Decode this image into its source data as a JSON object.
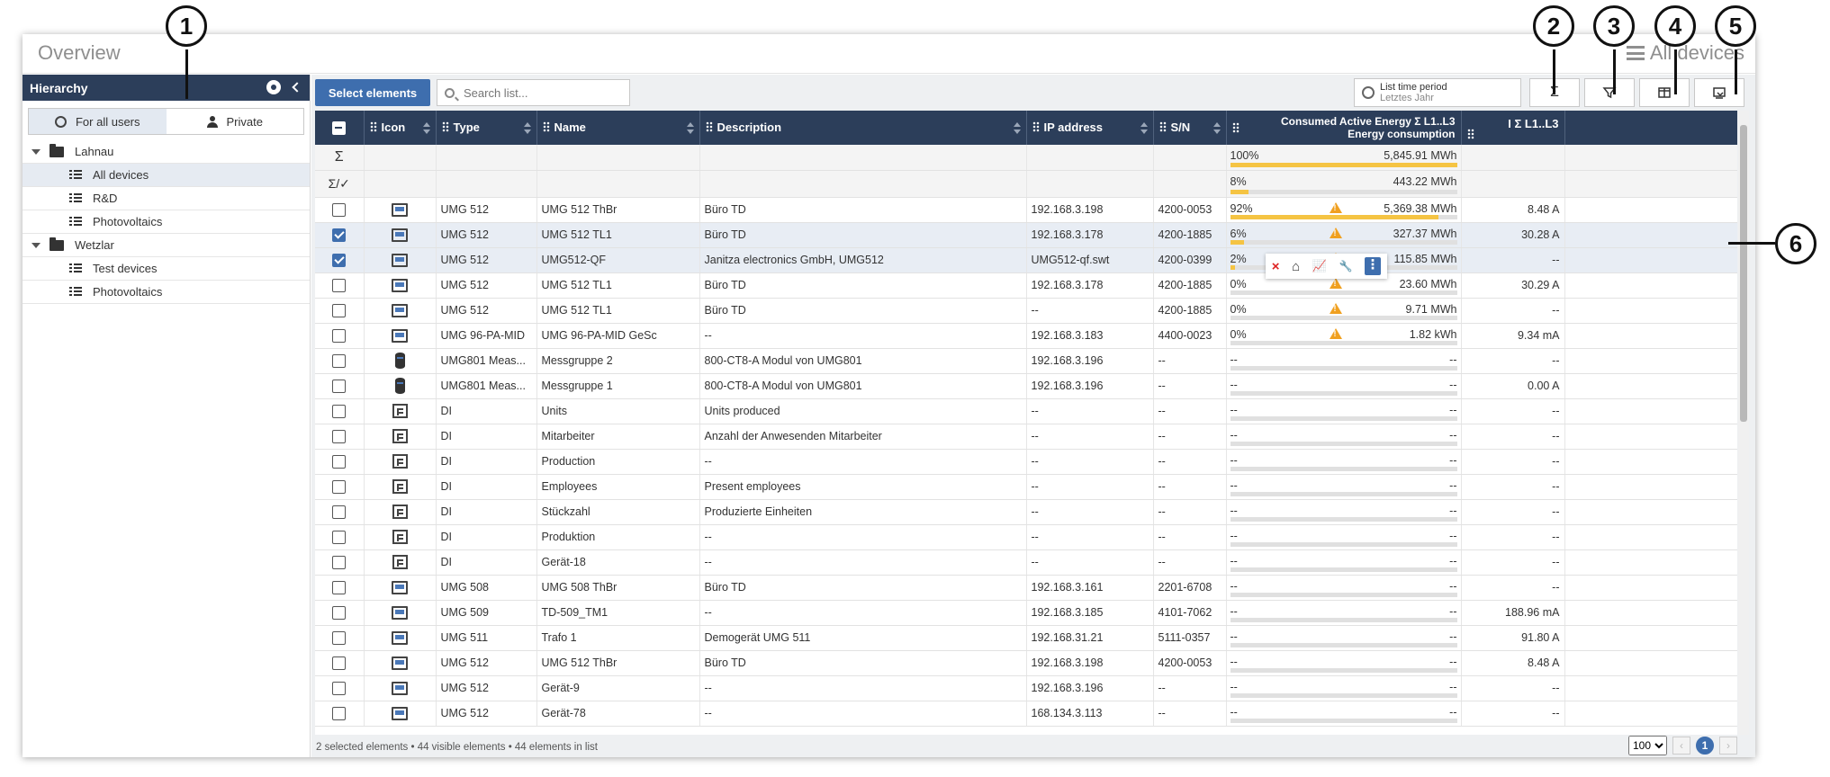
{
  "window": {
    "title": "Overview",
    "breadcrumb": "All devices"
  },
  "sidebar": {
    "header": "Hierarchy",
    "segments": [
      "For all users",
      "Private"
    ],
    "tree": [
      {
        "label": "Lahnau",
        "type": "folder"
      },
      {
        "label": "All devices",
        "type": "list",
        "selected": true
      },
      {
        "label": "R&D",
        "type": "list"
      },
      {
        "label": "Photovoltaics",
        "type": "list"
      },
      {
        "label": "Wetzlar",
        "type": "folder"
      },
      {
        "label": "Test devices",
        "type": "list"
      },
      {
        "label": "Photovoltaics",
        "type": "list"
      }
    ]
  },
  "toolbar": {
    "select_label": "Select elements",
    "search_placeholder": "Search list...",
    "period_title": "List time period",
    "period_value": "Letztes Jahr",
    "sum_icon": "Σ"
  },
  "table": {
    "headers": {
      "icon": "Icon",
      "type": "Type",
      "name": "Name",
      "description": "Description",
      "ip": "IP address",
      "sn": "S/N",
      "energy_line1": "Consumed Active Energy Σ L1..L3",
      "energy_line2": "Energy consumption",
      "current": "I Σ L1..L3"
    },
    "sum_row": {
      "symbol": "Σ",
      "pct": "100%",
      "value": "5,845.91 MWh",
      "fill": 1.0
    },
    "sum_sel_row": {
      "symbol": "Σ/✓",
      "pct": "8%",
      "value": "443.22 MWh",
      "fill": 0.08
    },
    "rows": [
      {
        "checked": false,
        "icon": "device",
        "type": "UMG 512",
        "name": "UMG 512 ThBr",
        "desc": "Büro TD",
        "ip": "192.168.3.198",
        "sn": "4200-0053",
        "pct": "92%",
        "energy": "5,369.38 MWh",
        "fill": 0.92,
        "warn": true,
        "current": "8.48 A"
      },
      {
        "checked": true,
        "icon": "device",
        "type": "UMG 512",
        "name": "UMG 512 TL1",
        "desc": "Büro TD",
        "ip": "192.168.3.178",
        "sn": "4200-1885",
        "pct": "6%",
        "energy": "327.37 MWh",
        "fill": 0.06,
        "warn": true,
        "current": "30.28 A"
      },
      {
        "checked": true,
        "icon": "device",
        "type": "UMG 512",
        "name": "UMG512-QF",
        "desc": "Janitza electronics GmbH, UMG512",
        "ip": "UMG512-qf.swt",
        "sn": "4200-0399",
        "pct": "2%",
        "energy": "115.85 MWh",
        "fill": 0.02,
        "warn": true,
        "current": "--"
      },
      {
        "checked": false,
        "icon": "device",
        "type": "UMG 512",
        "name": "UMG 512 TL1",
        "desc": "Büro TD",
        "ip": "192.168.3.178",
        "sn": "4200-1885",
        "pct": "0%",
        "energy": "23.60 MWh",
        "fill": 0,
        "warn": true,
        "current": "30.29 A"
      },
      {
        "checked": false,
        "icon": "device",
        "type": "UMG 512",
        "name": "UMG 512 TL1",
        "desc": "Büro TD",
        "ip": "--",
        "sn": "4200-1885",
        "pct": "0%",
        "energy": "9.71 MWh",
        "fill": 0,
        "warn": true,
        "current": "--"
      },
      {
        "checked": false,
        "icon": "device",
        "type": "UMG 96-PA-MID",
        "name": "UMG 96-PA-MID GeSc",
        "desc": "--",
        "ip": "192.168.3.183",
        "sn": "4400-0023",
        "pct": "0%",
        "energy": "1.82 kWh",
        "fill": 0,
        "warn": true,
        "current": "9.34 mA"
      },
      {
        "checked": false,
        "icon": "cylinder",
        "type": "UMG801 Meas...",
        "name": "Messgruppe 2",
        "desc": "800-CT8-A Modul von UMG801",
        "ip": "192.168.3.196",
        "sn": "--",
        "pct": "--",
        "energy": "--",
        "fill": 0,
        "warn": false,
        "current": "--"
      },
      {
        "checked": false,
        "icon": "cylinder",
        "type": "UMG801 Meas...",
        "name": "Messgruppe 1",
        "desc": "800-CT8-A Modul von UMG801",
        "ip": "192.168.3.196",
        "sn": "--",
        "pct": "--",
        "energy": "--",
        "fill": 0,
        "warn": false,
        "current": "0.00 A"
      },
      {
        "checked": false,
        "icon": "di",
        "type": "DI",
        "name": "Units",
        "desc": "Units produced",
        "ip": "--",
        "sn": "--",
        "pct": "--",
        "energy": "--",
        "fill": 0,
        "warn": false,
        "current": "--"
      },
      {
        "checked": false,
        "icon": "di",
        "type": "DI",
        "name": "Mitarbeiter",
        "desc": "Anzahl der Anwesenden Mitarbeiter",
        "ip": "--",
        "sn": "--",
        "pct": "--",
        "energy": "--",
        "fill": 0,
        "warn": false,
        "current": "--"
      },
      {
        "checked": false,
        "icon": "di",
        "type": "DI",
        "name": "Production",
        "desc": "--",
        "ip": "--",
        "sn": "--",
        "pct": "--",
        "energy": "--",
        "fill": 0,
        "warn": false,
        "current": "--"
      },
      {
        "checked": false,
        "icon": "di",
        "type": "DI",
        "name": "Employees",
        "desc": "Present employees",
        "ip": "--",
        "sn": "--",
        "pct": "--",
        "energy": "--",
        "fill": 0,
        "warn": false,
        "current": "--"
      },
      {
        "checked": false,
        "icon": "di",
        "type": "DI",
        "name": "Stückzahl",
        "desc": "Produzierte Einheiten",
        "ip": "--",
        "sn": "--",
        "pct": "--",
        "energy": "--",
        "fill": 0,
        "warn": false,
        "current": "--"
      },
      {
        "checked": false,
        "icon": "di",
        "type": "DI",
        "name": "Produktion",
        "desc": "--",
        "ip": "--",
        "sn": "--",
        "pct": "--",
        "energy": "--",
        "fill": 0,
        "warn": false,
        "current": "--"
      },
      {
        "checked": false,
        "icon": "di",
        "type": "DI",
        "name": "Gerät-18",
        "desc": "--",
        "ip": "--",
        "sn": "--",
        "pct": "--",
        "energy": "--",
        "fill": 0,
        "warn": false,
        "current": "--"
      },
      {
        "checked": false,
        "icon": "device",
        "type": "UMG 508",
        "name": "UMG 508 ThBr",
        "desc": "Büro TD",
        "ip": "192.168.3.161",
        "sn": "2201-6708",
        "pct": "--",
        "energy": "--",
        "fill": 0,
        "warn": false,
        "current": "--"
      },
      {
        "checked": false,
        "icon": "device",
        "type": "UMG 509",
        "name": "TD-509_TM1",
        "desc": "--",
        "ip": "192.168.3.185",
        "sn": "4101-7062",
        "pct": "--",
        "energy": "--",
        "fill": 0,
        "warn": false,
        "current": "188.96 mA"
      },
      {
        "checked": false,
        "icon": "device",
        "type": "UMG 511",
        "name": "Trafo 1",
        "desc": "Demogerät UMG 511",
        "ip": "192.168.31.21",
        "sn": "5111-0357",
        "pct": "--",
        "energy": "--",
        "fill": 0,
        "warn": false,
        "current": "91.80 A"
      },
      {
        "checked": false,
        "icon": "device",
        "type": "UMG 512",
        "name": "UMG 512 ThBr",
        "desc": "Büro TD",
        "ip": "192.168.3.198",
        "sn": "4200-0053",
        "pct": "--",
        "energy": "--",
        "fill": 0,
        "warn": false,
        "current": "8.48 A"
      },
      {
        "checked": false,
        "icon": "device",
        "type": "UMG 512",
        "name": "Gerät-9",
        "desc": "--",
        "ip": "192.168.3.196",
        "sn": "--",
        "pct": "--",
        "energy": "--",
        "fill": 0,
        "warn": false,
        "current": "--"
      },
      {
        "checked": false,
        "icon": "device",
        "type": "UMG 512",
        "name": "Gerät-78",
        "desc": "--",
        "ip": "168.134.3.113",
        "sn": "--",
        "pct": "--",
        "energy": "--",
        "fill": 0,
        "warn": false,
        "current": "--"
      }
    ]
  },
  "row_tools": [
    "×",
    "⌂",
    "📈",
    "🔧",
    "⋮"
  ],
  "footer": {
    "status": "2 selected elements  •  44 visible elements  •  44 elements in list",
    "page_size": "100",
    "page": "1"
  },
  "callouts": [
    "1",
    "2",
    "3",
    "4",
    "5",
    "6"
  ],
  "colors": {
    "header_bg": "#2c3e5a",
    "accent": "#3e6eae",
    "bar": "#f5c443",
    "warn": "#f0a020"
  }
}
